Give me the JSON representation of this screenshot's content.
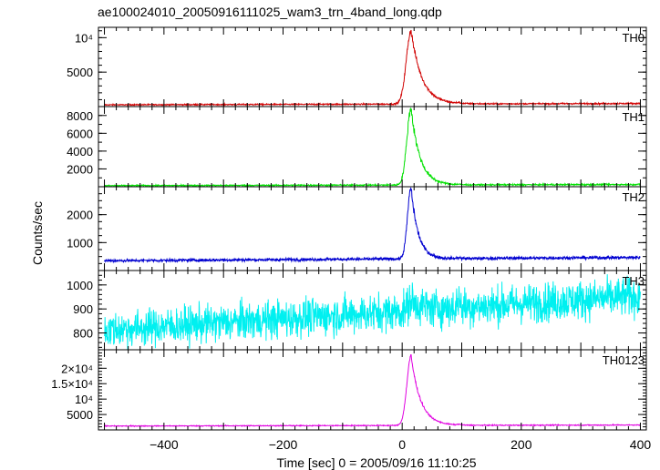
{
  "chart_data": {
    "type": "line",
    "title": "ae100024010_20050916111025_wam3_trn_4band_long.qdp",
    "xlabel": "Time [sec] 0 = 2005/09/16 11:10:25",
    "ylabel": "Counts/sec",
    "xlim": [
      -510,
      410
    ],
    "x_ticks": [
      -400,
      -200,
      0,
      200,
      400
    ],
    "x_tick_labels": [
      "−400",
      "−200",
      "0",
      "200",
      "400"
    ],
    "panels": [
      {
        "name": "TH0",
        "color": "#d00000",
        "ylim": [
          0,
          11500
        ],
        "y_ticks": [
          5000,
          10000
        ],
        "y_tick_labels": [
          "5000",
          "10⁴"
        ],
        "y_minor": 1000,
        "baseline_start": 250,
        "baseline_end": 450,
        "noise": 40,
        "peak_time": 15,
        "peak_value": 11000,
        "rise_sec": 8,
        "decay_sec": 18,
        "bump_time": 95,
        "bump_value": 500
      },
      {
        "name": "TH1",
        "color": "#00e000",
        "ylim": [
          0,
          9000
        ],
        "y_ticks": [
          2000,
          4000,
          6000,
          8000
        ],
        "y_tick_labels": [
          "2000",
          "4000",
          "6000",
          "8000"
        ],
        "y_minor": 1000,
        "baseline_start": 120,
        "baseline_end": 250,
        "noise": 30,
        "peak_time": 15,
        "peak_value": 8800,
        "rise_sec": 7,
        "decay_sec": 15,
        "bump_time": 95,
        "bump_value": 250
      },
      {
        "name": "TH2",
        "color": "#0000d0",
        "ylim": [
          0,
          3000
        ],
        "y_ticks": [
          1000,
          2000
        ],
        "y_tick_labels": [
          "1000",
          "2000"
        ],
        "y_minor": 250,
        "baseline_start": 350,
        "baseline_end": 470,
        "noise": 25,
        "peak_time": 15,
        "peak_value": 2950,
        "rise_sec": 6,
        "decay_sec": 12,
        "bump_time": 95,
        "bump_value": 440
      },
      {
        "name": "TH3",
        "color": "#00f0f0",
        "ylim": [
          730,
          1060
        ],
        "y_ticks": [
          800,
          900,
          1000
        ],
        "y_tick_labels": [
          "800",
          "900",
          "1000"
        ],
        "y_minor": 20,
        "baseline_start": 810,
        "baseline_end": 955,
        "noise": 38,
        "peak_time": 15,
        "peak_value": 935,
        "rise_sec": 5,
        "decay_sec": 20,
        "bump_time": 95,
        "bump_value": 900
      },
      {
        "name": "TH0123",
        "color": "#e000e0",
        "ylim": [
          0,
          26000
        ],
        "y_ticks": [
          5000,
          10000,
          15000,
          20000
        ],
        "y_tick_labels": [
          "5000",
          "10⁴",
          "1.5×10⁴",
          "2×10⁴"
        ],
        "y_minor": 1000,
        "baseline_start": 1250,
        "baseline_end": 1600,
        "noise": 70,
        "peak_time": 15,
        "peak_value": 24000,
        "rise_sec": 7,
        "decay_sec": 16,
        "bump_time": 95,
        "bump_value": 1900
      }
    ]
  }
}
